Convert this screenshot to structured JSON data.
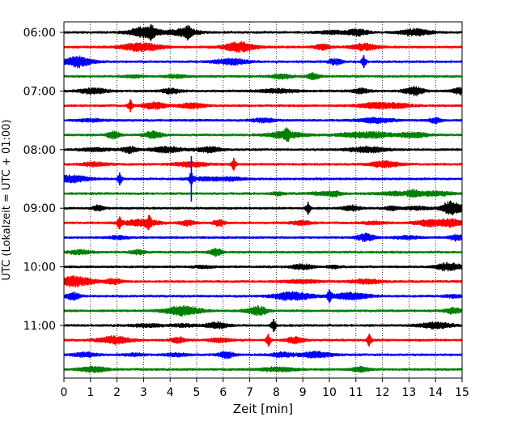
{
  "chart_data": {
    "type": "line",
    "title": "",
    "xlabel": "Zeit  [min]",
    "ylabel": "UTC (Lokalzeit = UTC + 01:00)",
    "xlim": [
      0,
      15
    ],
    "x_ticks": [
      "0",
      "1",
      "2",
      "3",
      "4",
      "5",
      "6",
      "7",
      "8",
      "9",
      "10",
      "11",
      "12",
      "13",
      "14",
      "15"
    ],
    "y_ticks": [
      "06:00",
      "07:00",
      "08:00",
      "09:00",
      "10:00",
      "11:00"
    ],
    "grid": "vertical dotted at each minute",
    "series_colors": [
      "#000000",
      "#ff0000",
      "#0000ff",
      "#008000"
    ],
    "rows": [
      {
        "start": "06:00",
        "color": "#000000"
      },
      {
        "start": "06:15",
        "color": "#ff0000"
      },
      {
        "start": "06:30",
        "color": "#0000ff"
      },
      {
        "start": "06:45",
        "color": "#008000"
      },
      {
        "start": "07:00",
        "color": "#000000"
      },
      {
        "start": "07:15",
        "color": "#ff0000"
      },
      {
        "start": "07:30",
        "color": "#0000ff"
      },
      {
        "start": "07:45",
        "color": "#008000"
      },
      {
        "start": "08:00",
        "color": "#000000"
      },
      {
        "start": "08:15",
        "color": "#ff0000"
      },
      {
        "start": "08:30",
        "color": "#0000ff"
      },
      {
        "start": "08:45",
        "color": "#008000"
      },
      {
        "start": "09:00",
        "color": "#000000"
      },
      {
        "start": "09:15",
        "color": "#ff0000"
      },
      {
        "start": "09:30",
        "color": "#0000ff"
      },
      {
        "start": "09:45",
        "color": "#008000"
      },
      {
        "start": "10:00",
        "color": "#000000"
      },
      {
        "start": "10:15",
        "color": "#ff0000"
      },
      {
        "start": "10:30",
        "color": "#0000ff"
      },
      {
        "start": "10:45",
        "color": "#008000"
      },
      {
        "start": "11:00",
        "color": "#000000"
      },
      {
        "start": "11:15",
        "color": "#ff0000"
      },
      {
        "start": "11:30",
        "color": "#0000ff"
      },
      {
        "start": "11:45",
        "color": "#008000"
      }
    ],
    "notable_events": [
      {
        "row": "06:00",
        "x_min": 3.3
      },
      {
        "row": "06:00",
        "x_min": 4.7
      },
      {
        "row": "06:30",
        "x_min": 11.3
      },
      {
        "row": "07:15",
        "x_min": 2.5
      },
      {
        "row": "07:45",
        "x_min": 8.4
      },
      {
        "row": "08:15",
        "x_min": 6.4
      },
      {
        "row": "08:30",
        "x_min": 4.8
      },
      {
        "row": "08:30",
        "x_min": 2.1
      },
      {
        "row": "09:00",
        "x_min": 9.2
      },
      {
        "row": "09:15",
        "x_min": 2.1
      },
      {
        "row": "09:15",
        "x_min": 3.2
      },
      {
        "row": "10:30",
        "x_min": 10.0
      },
      {
        "row": "11:00",
        "x_min": 7.9
      },
      {
        "row": "11:15",
        "x_min": 7.7
      },
      {
        "row": "11:15",
        "x_min": 11.5
      }
    ]
  }
}
